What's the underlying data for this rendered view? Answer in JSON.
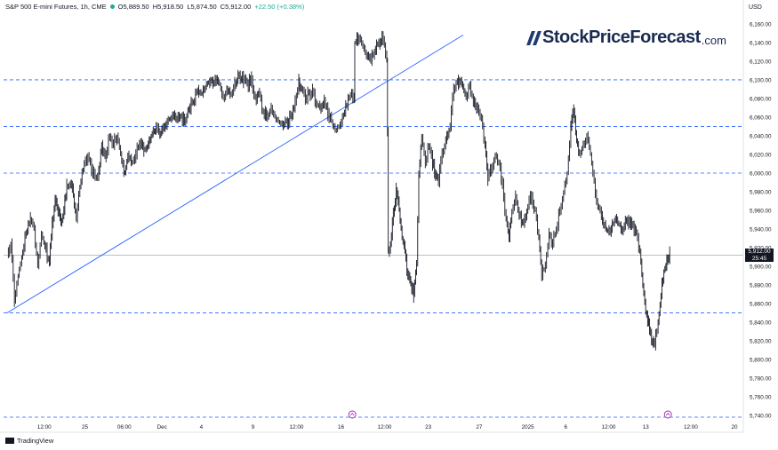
{
  "legend": {
    "symbol": "S&P 500 E-mini Futures, 1h, CME",
    "open": "O5,889.50",
    "high": "H5,918.50",
    "low": "L5,874.50",
    "close": "C5,912.00",
    "change": "+22.50 (+0.38%)"
  },
  "currency": "USD",
  "logo": {
    "brand": "StockPriceForecast",
    "domain": ".com"
  },
  "footer": {
    "brand": "TradingView"
  },
  "last_price": {
    "value": "5,912.00",
    "countdown": "25:45"
  },
  "colors": {
    "candle": "#131722",
    "level_line": "#2962ff",
    "trendline": "#2962ff",
    "accent": "#22ab94",
    "marker": "#9c27b0"
  },
  "chart_data": {
    "type": "line",
    "title": "",
    "xlabel": "",
    "ylabel": "",
    "ylim": [
      5722,
      6178
    ],
    "y_ticks": [
      5740,
      5760,
      5780,
      5800,
      5820,
      5840,
      5860,
      5880,
      5900,
      5920,
      5940,
      5960,
      5980,
      6000,
      6020,
      6040,
      6060,
      6080,
      6100,
      6120,
      6140,
      6160
    ],
    "y_tick_labels": [
      "5,740.00",
      "5,760.00",
      "5,780.00",
      "5,800.00",
      "5,820.00",
      "5,840.00",
      "5,860.00",
      "5,880.00",
      "5,900.00",
      "5,920.00",
      "5,940.00",
      "5,960.00",
      "5,980.00",
      "6,000.00",
      "6,020.00",
      "6,040.00",
      "6,060.00",
      "6,080.00",
      "6,100.00",
      "6,120.00",
      "6,140.00",
      "6,160.00"
    ],
    "x_ticks": [
      {
        "label": "12:00",
        "pos": 0.051
      },
      {
        "label": "25",
        "pos": 0.107
      },
      {
        "label": "06:00",
        "pos": 0.161
      },
      {
        "label": "Dec",
        "pos": 0.213
      },
      {
        "label": "4",
        "pos": 0.267
      },
      {
        "label": "9",
        "pos": 0.338
      },
      {
        "label": "12:00",
        "pos": 0.398
      },
      {
        "label": "16",
        "pos": 0.459
      },
      {
        "label": "12:00",
        "pos": 0.519
      },
      {
        "label": "23",
        "pos": 0.579
      },
      {
        "label": "27",
        "pos": 0.649
      },
      {
        "label": "2025",
        "pos": 0.716
      },
      {
        "label": "6",
        "pos": 0.768
      },
      {
        "label": "12:00",
        "pos": 0.827
      },
      {
        "label": "13",
        "pos": 0.878
      },
      {
        "label": "12:00",
        "pos": 0.94
      },
      {
        "label": "20",
        "pos": 1.0
      }
    ],
    "series": [
      {
        "values": [
          [
            0.0,
            5915
          ],
          [
            0.005,
            5925
          ],
          [
            0.01,
            5865
          ],
          [
            0.015,
            5890
          ],
          [
            0.02,
            5910
          ],
          [
            0.026,
            5935
          ],
          [
            0.032,
            5950
          ],
          [
            0.037,
            5940
          ],
          [
            0.042,
            5900
          ],
          [
            0.047,
            5935
          ],
          [
            0.052,
            5920
          ],
          [
            0.058,
            5905
          ],
          [
            0.062,
            5945
          ],
          [
            0.066,
            5970
          ],
          [
            0.07,
            5960
          ],
          [
            0.074,
            5945
          ],
          [
            0.078,
            5960
          ],
          [
            0.082,
            5985
          ],
          [
            0.087,
            5990
          ],
          [
            0.091,
            5975
          ],
          [
            0.095,
            5950
          ],
          [
            0.1,
            5985
          ],
          [
            0.106,
            6010
          ],
          [
            0.111,
            6020
          ],
          [
            0.116,
            6005
          ],
          [
            0.121,
            5995
          ],
          [
            0.126,
            6000
          ],
          [
            0.13,
            6030
          ],
          [
            0.136,
            6020
          ],
          [
            0.141,
            6040
          ],
          [
            0.146,
            6030
          ],
          [
            0.151,
            6040
          ],
          [
            0.156,
            6020
          ],
          [
            0.162,
            6000
          ],
          [
            0.166,
            6020
          ],
          [
            0.172,
            6012
          ],
          [
            0.177,
            6020
          ],
          [
            0.182,
            6030
          ],
          [
            0.188,
            6025
          ],
          [
            0.194,
            6030
          ],
          [
            0.198,
            6040
          ],
          [
            0.205,
            6048
          ],
          [
            0.21,
            6040
          ],
          [
            0.214,
            6050
          ],
          [
            0.22,
            6055
          ],
          [
            0.226,
            6060
          ],
          [
            0.232,
            6058
          ],
          [
            0.238,
            6062
          ],
          [
            0.244,
            6055
          ],
          [
            0.25,
            6070
          ],
          [
            0.256,
            6075
          ],
          [
            0.262,
            6090
          ],
          [
            0.268,
            6085
          ],
          [
            0.274,
            6095
          ],
          [
            0.28,
            6100
          ],
          [
            0.286,
            6098
          ],
          [
            0.292,
            6095
          ],
          [
            0.297,
            6080
          ],
          [
            0.302,
            6090
          ],
          [
            0.308,
            6085
          ],
          [
            0.313,
            6095
          ],
          [
            0.319,
            6105
          ],
          [
            0.325,
            6100
          ],
          [
            0.33,
            6095
          ],
          [
            0.336,
            6100
          ],
          [
            0.341,
            6080
          ],
          [
            0.347,
            6085
          ],
          [
            0.352,
            6065
          ],
          [
            0.358,
            6060
          ],
          [
            0.363,
            6070
          ],
          [
            0.368,
            6060
          ],
          [
            0.373,
            6055
          ],
          [
            0.378,
            6052
          ],
          [
            0.384,
            6055
          ],
          [
            0.39,
            6060
          ],
          [
            0.396,
            6075
          ],
          [
            0.401,
            6098
          ],
          [
            0.405,
            6090
          ],
          [
            0.41,
            6080
          ],
          [
            0.415,
            6085
          ],
          [
            0.42,
            6088
          ],
          [
            0.425,
            6075
          ],
          [
            0.43,
            6070
          ],
          [
            0.436,
            6078
          ],
          [
            0.441,
            6065
          ],
          [
            0.446,
            6055
          ],
          [
            0.451,
            6045
          ],
          [
            0.456,
            6050
          ],
          [
            0.461,
            6060
          ],
          [
            0.467,
            6072
          ],
          [
            0.472,
            6085
          ],
          [
            0.477,
            6080
          ],
          [
            0.478,
            6140
          ],
          [
            0.484,
            6145
          ],
          [
            0.489,
            6135
          ],
          [
            0.494,
            6125
          ],
          [
            0.5,
            6120
          ],
          [
            0.505,
            6132
          ],
          [
            0.511,
            6140
          ],
          [
            0.517,
            6145
          ],
          [
            0.522,
            6120
          ],
          [
            0.523,
            6045
          ],
          [
            0.524,
            5915
          ],
          [
            0.527,
            5925
          ],
          [
            0.531,
            5955
          ],
          [
            0.535,
            5980
          ],
          [
            0.539,
            5960
          ],
          [
            0.543,
            5930
          ],
          [
            0.547,
            5915
          ],
          [
            0.551,
            5890
          ],
          [
            0.555,
            5880
          ],
          [
            0.559,
            5870
          ],
          [
            0.563,
            5905
          ],
          [
            0.566,
            6000
          ],
          [
            0.57,
            6040
          ],
          [
            0.575,
            6010
          ],
          [
            0.58,
            6030
          ],
          [
            0.585,
            6010
          ],
          [
            0.589,
            6000
          ],
          [
            0.593,
            5990
          ],
          [
            0.598,
            6020
          ],
          [
            0.603,
            6035
          ],
          [
            0.609,
            6050
          ],
          [
            0.614,
            6090
          ],
          [
            0.619,
            6100
          ],
          [
            0.625,
            6095
          ],
          [
            0.631,
            6080
          ],
          [
            0.636,
            6095
          ],
          [
            0.641,
            6075
          ],
          [
            0.647,
            6070
          ],
          [
            0.652,
            6060
          ],
          [
            0.657,
            6030
          ],
          [
            0.661,
            5995
          ],
          [
            0.666,
            6005
          ],
          [
            0.671,
            6020
          ],
          [
            0.676,
            6010
          ],
          [
            0.681,
            5990
          ],
          [
            0.686,
            5950
          ],
          [
            0.69,
            5930
          ],
          [
            0.694,
            5960
          ],
          [
            0.699,
            5975
          ],
          [
            0.704,
            5955
          ],
          [
            0.71,
            5945
          ],
          [
            0.716,
            5965
          ],
          [
            0.721,
            5975
          ],
          [
            0.726,
            5960
          ],
          [
            0.731,
            5930
          ],
          [
            0.735,
            5890
          ],
          [
            0.74,
            5900
          ],
          [
            0.745,
            5935
          ],
          [
            0.75,
            5925
          ],
          [
            0.755,
            5940
          ],
          [
            0.76,
            5960
          ],
          [
            0.765,
            5980
          ],
          [
            0.77,
            6000
          ],
          [
            0.775,
            6050
          ],
          [
            0.779,
            6065
          ],
          [
            0.783,
            6035
          ],
          [
            0.787,
            6020
          ],
          [
            0.792,
            6030
          ],
          [
            0.797,
            6040
          ],
          [
            0.802,
            6020
          ],
          [
            0.807,
            5990
          ],
          [
            0.812,
            5965
          ],
          [
            0.817,
            5955
          ],
          [
            0.823,
            5940
          ],
          [
            0.829,
            5935
          ],
          [
            0.835,
            5950
          ],
          [
            0.841,
            5945
          ],
          [
            0.847,
            5940
          ],
          [
            0.853,
            5950
          ],
          [
            0.859,
            5945
          ],
          [
            0.865,
            5935
          ],
          [
            0.87,
            5915
          ],
          [
            0.874,
            5880
          ],
          [
            0.878,
            5850
          ],
          [
            0.882,
            5840
          ],
          [
            0.886,
            5820
          ],
          [
            0.89,
            5815
          ],
          [
            0.895,
            5840
          ],
          [
            0.899,
            5870
          ],
          [
            0.903,
            5895
          ],
          [
            0.907,
            5905
          ],
          [
            0.911,
            5912
          ]
        ]
      }
    ],
    "horizontal_levels": [
      6100,
      6050,
      6000,
      5850
    ],
    "trendline": {
      "from": [
        0.0,
        5850
      ],
      "to": [
        0.627,
        6148
      ]
    },
    "last_price_line": 5912
  }
}
